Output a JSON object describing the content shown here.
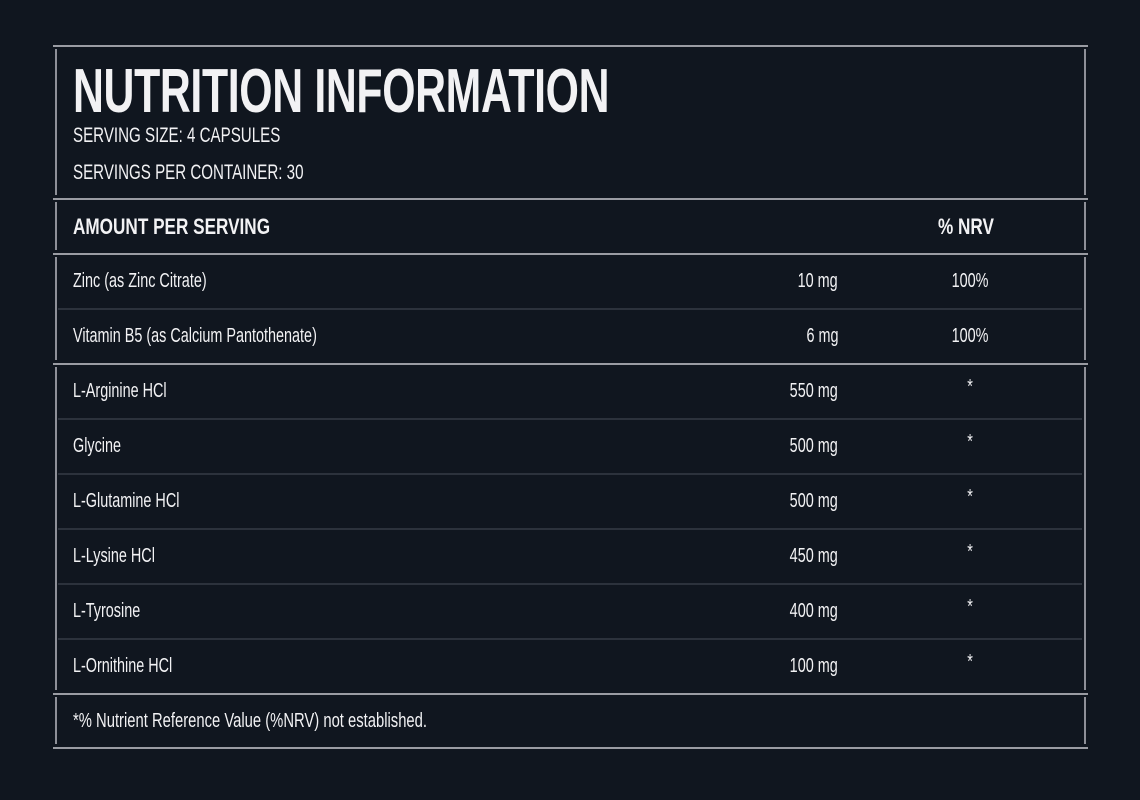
{
  "header": {
    "title": "NUTRITION INFORMATION",
    "serving_size": "SERVING SIZE: 4 CAPSULES",
    "servings_per_container": "SERVINGS PER CONTAINER: 30"
  },
  "table": {
    "columns": [
      "AMOUNT PER SERVING",
      "% NRV"
    ],
    "groups": [
      [
        {
          "name": "Zinc (as Zinc Citrate)",
          "amount": "10 mg",
          "nrv": "100%"
        },
        {
          "name": "Vitamin B5 (as Calcium Pantothenate)",
          "amount": "6 mg",
          "nrv": "100%"
        }
      ],
      [
        {
          "name": "L-Arginine HCl",
          "amount": "550 mg",
          "nrv": "*"
        },
        {
          "name": "Glycine",
          "amount": "500 mg",
          "nrv": "*"
        },
        {
          "name": "L-Glutamine HCl",
          "amount": "500 mg",
          "nrv": "*"
        },
        {
          "name": "L-Lysine HCl",
          "amount": "450 mg",
          "nrv": "*"
        },
        {
          "name": "L-Tyrosine",
          "amount": "400 mg",
          "nrv": "*"
        },
        {
          "name": "L-Ornithine HCl",
          "amount": "100 mg",
          "nrv": "*"
        }
      ]
    ]
  },
  "footnote": "*% Nutrient Reference Value (%NRV) not established.",
  "colors": {
    "background": "#10161f",
    "border": "#9a9ca3",
    "text": "#f2f2f4"
  }
}
